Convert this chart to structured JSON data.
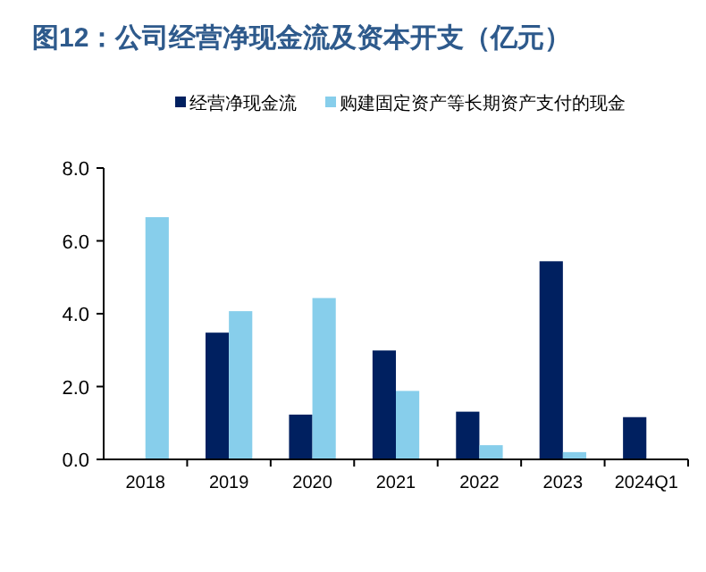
{
  "chart_data": {
    "type": "bar",
    "title": "图12：公司经营净现金流及资本开支（亿元）",
    "categories": [
      "2018",
      "2019",
      "2020",
      "2021",
      "2022",
      "2023",
      "2024Q1"
    ],
    "series": [
      {
        "name": "经营净现金流",
        "color": "#002060",
        "values": [
          0.02,
          3.48,
          1.23,
          2.99,
          1.31,
          5.44,
          1.16
        ]
      },
      {
        "name": "购建固定资产等长期资产支付的现金",
        "color": "#87ceeb",
        "values": [
          6.65,
          4.07,
          4.43,
          1.88,
          0.39,
          0.2,
          null
        ]
      }
    ],
    "ylim": [
      0,
      8
    ],
    "yticks": [
      {
        "value": 0,
        "label": "0.0"
      },
      {
        "value": 2,
        "label": "2.0"
      },
      {
        "value": 4,
        "label": "4.0"
      },
      {
        "value": 6,
        "label": "6.0"
      },
      {
        "value": 8,
        "label": "8.0"
      }
    ],
    "legend": "top",
    "grid": false
  }
}
